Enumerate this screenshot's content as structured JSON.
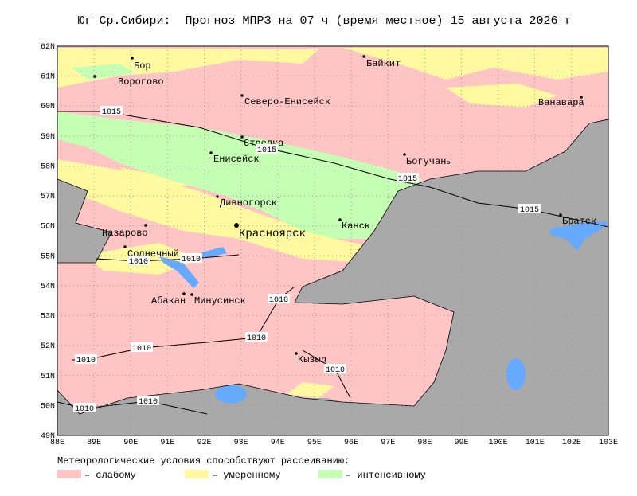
{
  "title": "Юг Ср.Сибири:  Прогноз МПРЗ на 07 ч (время местное) 15 августа 2026 г",
  "map": {
    "lat_labels": [
      "62N",
      "61N",
      "60N",
      "59N",
      "58N",
      "57N",
      "56N",
      "55N",
      "54N",
      "53N",
      "52N",
      "51N",
      "50N",
      "49N"
    ],
    "lon_labels": [
      "88E",
      "89E",
      "90E",
      "91E",
      "92E",
      "93E",
      "94E",
      "95E",
      "96E",
      "97E",
      "98E",
      "99E",
      "100E",
      "101E",
      "102E",
      "103E"
    ],
    "cities": [
      "Бор",
      "Ворогово",
      "Байкит",
      "Северо-Енисейск",
      "Ванавара",
      "Стрелка",
      "Енисейск",
      "Богучаны",
      "Дивногорск",
      "Канск",
      "Назарово",
      "Красноярск",
      "Братск",
      "Солнечный",
      "Абакан",
      "Минусинск",
      "Кызыл"
    ],
    "isobar_labels": [
      "1015",
      "1015",
      "1015",
      "1015",
      "1010",
      "1010",
      "1010",
      "1010",
      "1010",
      "1010",
      "1010",
      "1010",
      "1010"
    ]
  },
  "legend": {
    "heading": "Метеорологические условия способствуют рассеиванию:",
    "items": [
      "– слабому",
      "– умеренному",
      "– интенсивному"
    ]
  }
}
